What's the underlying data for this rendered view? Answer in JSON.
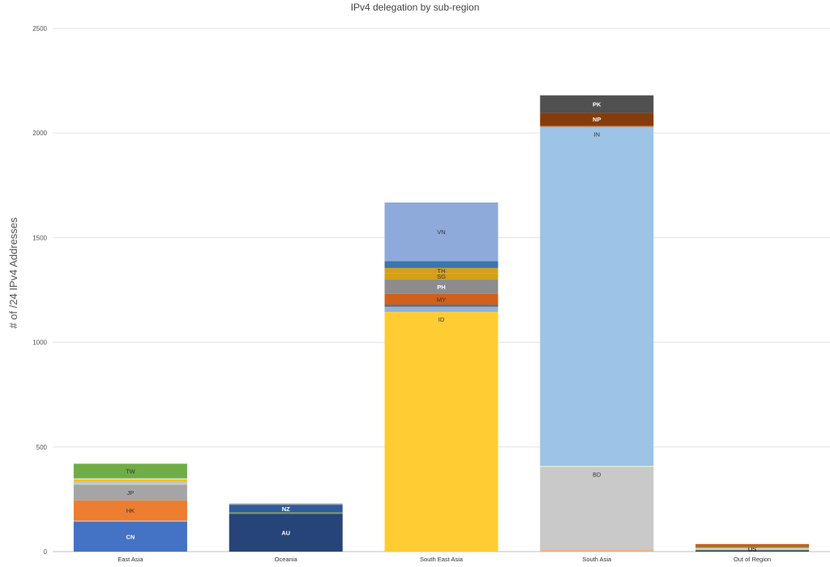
{
  "chart_data": {
    "type": "bar",
    "stacked": true,
    "title": "IPv4 delegation by sub-region",
    "xlabel": "",
    "ylabel": "# of /24 IPv4 Addresses",
    "ylim": [
      0,
      2500
    ],
    "yticks": [
      0,
      500,
      1000,
      1500,
      2000,
      2500
    ],
    "grid": true,
    "categories": [
      "East Asia",
      "Oceania",
      "South East Asia",
      "South Asia",
      "Out of Region"
    ],
    "bars": [
      {
        "category": "East Asia",
        "segments": [
          {
            "label": "CN",
            "value": 143,
            "color": "#4472c4",
            "text_color": "#ffffff"
          },
          {
            "label": "",
            "value": 5,
            "color": "#9dc3e6"
          },
          {
            "label": "HK",
            "value": 97,
            "color": "#ed7d31",
            "text_color": "#333333"
          },
          {
            "label": "JP",
            "value": 75,
            "color": "#a5a5a5",
            "text_color": "#333333"
          },
          {
            "label": "",
            "value": 10,
            "color": "#c9c9c9"
          },
          {
            "label": "",
            "value": 5,
            "color": "#9dc3e6"
          },
          {
            "label": "",
            "value": 10,
            "color": "#ffc000"
          },
          {
            "label": "",
            "value": 5,
            "color": "#d9e7c8"
          },
          {
            "label": "TW",
            "value": 70,
            "color": "#70ad47",
            "text_color": "#333333"
          }
        ]
      },
      {
        "category": "Oceania",
        "segments": [
          {
            "label": "AU",
            "value": 180,
            "color": "#264478",
            "text_color": "#ffffff"
          },
          {
            "label": "",
            "value": 8,
            "color": "#7a9a63"
          },
          {
            "label": "NZ",
            "value": 36,
            "color": "#2e5c9e",
            "text_color": "#ffffff"
          },
          {
            "label": "",
            "value": 6,
            "color": "#a5a5a5"
          }
        ]
      },
      {
        "category": "South East Asia",
        "segments": [
          {
            "label": "ID",
            "value": 1145,
            "color": "#ffcc33",
            "text_color": "#333333"
          },
          {
            "label": "",
            "value": 25,
            "color": "#8fb3dc"
          },
          {
            "label": "",
            "value": 10,
            "color": "#4d6b8a"
          },
          {
            "label": "MY",
            "value": 52,
            "color": "#d2601a",
            "text_color": "#333333"
          },
          {
            "label": "PH",
            "value": 68,
            "color": "#8c8c8c",
            "text_color": "#ffffff"
          },
          {
            "label": "SG",
            "value": 30,
            "color": "#d4a017",
            "text_color": "#333333"
          },
          {
            "label": "TH",
            "value": 25,
            "color": "#d4a017",
            "text_color": "#333333"
          },
          {
            "label": "",
            "value": 33,
            "color": "#3a75ad"
          },
          {
            "label": "VN",
            "value": 280,
            "color": "#8eaadb",
            "text_color": "#333333"
          }
        ]
      },
      {
        "category": "South Asia",
        "segments": [
          {
            "label": "",
            "value": 10,
            "color": "#f4b183"
          },
          {
            "label": "BD",
            "value": 395,
            "color": "#c9c9c9",
            "text_color": "#333333"
          },
          {
            "label": "",
            "value": 5,
            "color": "#dbe9c9"
          },
          {
            "label": "IN",
            "value": 1620,
            "color": "#9dc3e6",
            "text_color": "#333333"
          },
          {
            "label": "",
            "value": 5,
            "color": "#c55a11"
          },
          {
            "label": "NP",
            "value": 62,
            "color": "#843c0c",
            "text_color": "#ffffff"
          },
          {
            "label": "PK",
            "value": 83,
            "color": "#505050",
            "text_color": "#ffffff"
          }
        ]
      },
      {
        "category": "Out of Region",
        "segments": [
          {
            "label": "",
            "value": 7,
            "color": "#2f4f2f"
          },
          {
            "label": "US",
            "value": 12,
            "color": "#c9c9c9",
            "text_color": "#000000"
          },
          {
            "label": "",
            "value": 5,
            "color": "#5a8c3a"
          },
          {
            "label": "",
            "value": 12,
            "color": "#c55a11"
          }
        ]
      }
    ]
  }
}
